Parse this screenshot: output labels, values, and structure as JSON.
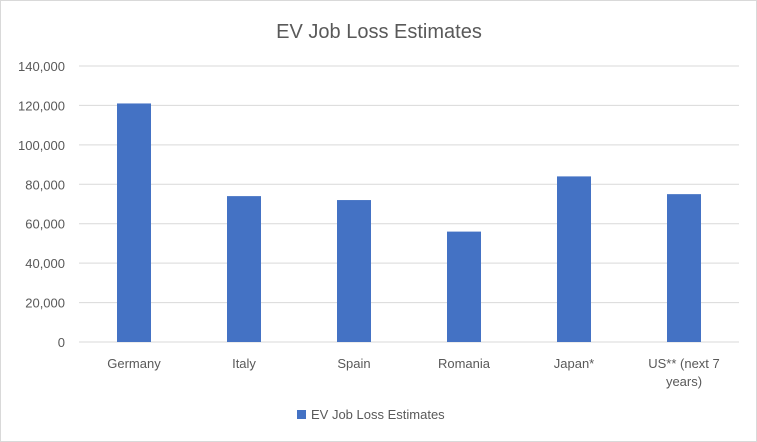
{
  "chart_data": {
    "type": "bar",
    "title": "EV Job Loss Estimates",
    "xlabel": "",
    "ylabel": "",
    "categories": [
      "Germany",
      "Italy",
      "Spain",
      "Romania",
      "Japan*",
      "US** (next 7 years)"
    ],
    "category_lines": [
      [
        "Germany"
      ],
      [
        "Italy"
      ],
      [
        "Spain"
      ],
      [
        "Romania"
      ],
      [
        "Japan*"
      ],
      [
        "US** (next 7",
        "years)"
      ]
    ],
    "series": [
      {
        "name": "EV Job Loss Estimates",
        "values": [
          121000,
          74000,
          72000,
          56000,
          84000,
          75000
        ]
      }
    ],
    "ylim": [
      0,
      140000
    ],
    "yticks": [
      0,
      20000,
      40000,
      60000,
      80000,
      100000,
      120000,
      140000
    ],
    "ytick_labels": [
      "0",
      "20,000",
      "40,000",
      "60,000",
      "80,000",
      "100,000",
      "120,000",
      "140,000"
    ],
    "grid": true,
    "legend_position": "bottom",
    "colors": {
      "bar": "#4472c4",
      "grid": "#d9d9d9",
      "text": "#595959"
    }
  }
}
